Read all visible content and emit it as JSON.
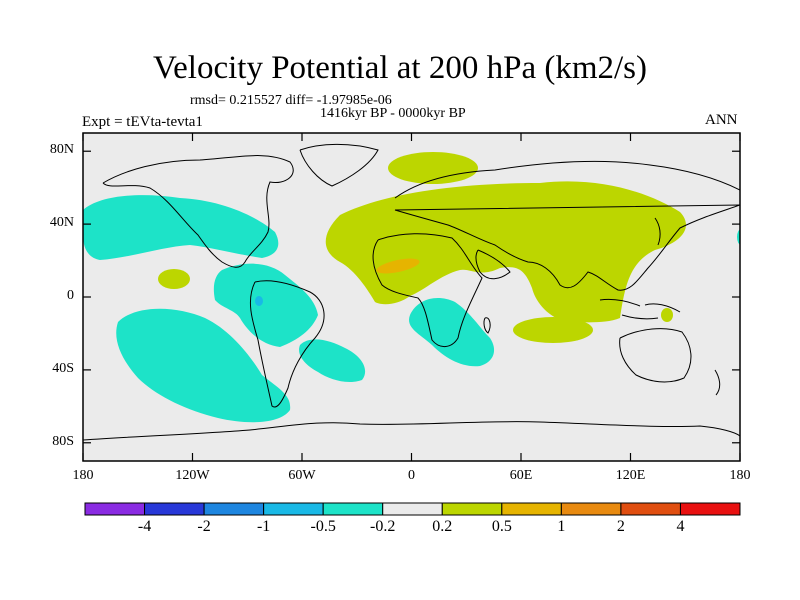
{
  "title": "Velocity Potential at 200 hPa (km2/s)",
  "stats": "rmsd= 0.215527 diff= -1.97985e-06",
  "experiment": "Expt = tEVta-tevta1",
  "period": "1416kyr BP - 0000kyr BP",
  "season": "ANN",
  "map": {
    "projection": "cylindrical equidistant",
    "lon_range": [
      -180,
      180
    ],
    "lat_range": [
      -90,
      90
    ],
    "background_color": "#ebebeb",
    "coastline_color": "#000000"
  },
  "y_ticks": [
    {
      "value": 80,
      "label": "80N"
    },
    {
      "value": 40,
      "label": "40N"
    },
    {
      "value": 0,
      "label": "0"
    },
    {
      "value": -40,
      "label": "40S"
    },
    {
      "value": -80,
      "label": "80S"
    }
  ],
  "x_ticks": [
    {
      "value": -180,
      "label": "180"
    },
    {
      "value": -120,
      "label": "120W"
    },
    {
      "value": -60,
      "label": "60W"
    },
    {
      "value": 0,
      "label": "0"
    },
    {
      "value": 60,
      "label": "60E"
    },
    {
      "value": 120,
      "label": "120E"
    },
    {
      "value": 180,
      "label": "180"
    }
  ],
  "colorbar": {
    "colors": [
      "#8a2be2",
      "#2838d8",
      "#1e86e0",
      "#19b9e6",
      "#1de3c8",
      "#ebebeb",
      "#bcd600",
      "#e6b400",
      "#e88a10",
      "#e04e10",
      "#e81010"
    ],
    "labels": [
      "-4",
      "-2",
      "-1",
      "-0.5",
      "-0.2",
      "0.2",
      "0.5",
      "1",
      "2",
      "4"
    ]
  },
  "regions": [
    {
      "name": "positive-velocity-potential-region",
      "level": "0.2 to 0.5",
      "color": "#bcd600"
    },
    {
      "name": "moderate-positive-region",
      "level": "0.5 to 1",
      "color": "#e6b400"
    },
    {
      "name": "negative-velocity-potential-region",
      "level": "-0.5 to -0.2",
      "color": "#1de3c8"
    },
    {
      "name": "moderate-negative-region",
      "level": "-1 to -0.5",
      "color": "#19b9e6"
    }
  ]
}
